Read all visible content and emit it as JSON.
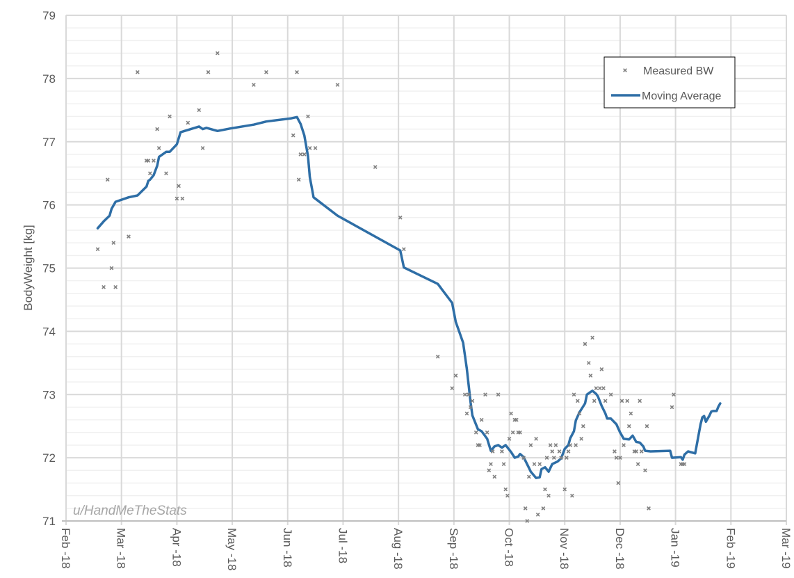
{
  "chart_data": {
    "type": "scatter",
    "title": "",
    "xlabel": "",
    "ylabel": "BodyWeight [kg]",
    "ylim": [
      71,
      79
    ],
    "yticks": [
      "71",
      "72",
      "73",
      "74",
      "75",
      "76",
      "77",
      "78",
      "79"
    ],
    "y_minor_step": 0.2,
    "xlim": [
      "2018-02-01",
      "2019-03-01"
    ],
    "xticks": [
      "Feb -18",
      "Mar -18",
      "Apr -18",
      "May -18",
      "Jun -18",
      "Jul -18",
      "Aug -18",
      "Sep -18",
      "Oct -18",
      "Nov -18",
      "Dec -18",
      "Jan -19",
      "Feb -19",
      "Mar -19"
    ],
    "grid": true,
    "legend_position": "top-right",
    "watermark": "u/HandMeTheStats",
    "colors": {
      "measured": "#808080",
      "moving_average": "#2e6ea6",
      "grid": "#d9d9d9",
      "text": "#595959"
    },
    "series": [
      {
        "name": "Measured BW",
        "type": "scatter",
        "marker": "x",
        "points": [
          [
            "2018-02-17",
            75.3
          ],
          [
            "2018-02-20",
            74.7
          ],
          [
            "2018-02-22",
            76.4
          ],
          [
            "2018-02-24",
            75.0
          ],
          [
            "2018-02-25",
            75.4
          ],
          [
            "2018-02-26",
            74.7
          ],
          [
            "2018-03-05",
            75.5
          ],
          [
            "2018-03-10",
            78.1
          ],
          [
            "2018-03-15",
            76.7
          ],
          [
            "2018-03-16",
            76.7
          ],
          [
            "2018-03-17",
            76.5
          ],
          [
            "2018-03-19",
            76.7
          ],
          [
            "2018-03-21",
            77.2
          ],
          [
            "2018-03-22",
            76.9
          ],
          [
            "2018-03-26",
            76.5
          ],
          [
            "2018-03-28",
            77.4
          ],
          [
            "2018-04-01",
            76.1
          ],
          [
            "2018-04-02",
            76.3
          ],
          [
            "2018-04-04",
            76.1
          ],
          [
            "2018-04-07",
            77.3
          ],
          [
            "2018-04-13",
            77.5
          ],
          [
            "2018-04-15",
            76.9
          ],
          [
            "2018-04-18",
            78.1
          ],
          [
            "2018-04-23",
            78.4
          ],
          [
            "2018-05-13",
            77.9
          ],
          [
            "2018-05-20",
            78.1
          ],
          [
            "2018-06-04",
            77.1
          ],
          [
            "2018-06-06",
            78.1
          ],
          [
            "2018-06-07",
            76.4
          ],
          [
            "2018-06-08",
            76.8
          ],
          [
            "2018-06-10",
            76.8
          ],
          [
            "2018-06-12",
            77.4
          ],
          [
            "2018-06-13",
            76.9
          ],
          [
            "2018-06-16",
            76.9
          ],
          [
            "2018-06-28",
            77.9
          ],
          [
            "2018-07-19",
            76.6
          ],
          [
            "2018-08-02",
            75.8
          ],
          [
            "2018-08-04",
            75.3
          ],
          [
            "2018-08-23",
            73.6
          ],
          [
            "2018-08-31",
            73.1
          ],
          [
            "2018-09-02",
            73.3
          ],
          [
            "2018-09-07",
            73.0
          ],
          [
            "2018-09-08",
            72.7
          ],
          [
            "2018-09-09",
            73.0
          ],
          [
            "2018-09-10",
            72.8
          ],
          [
            "2018-09-11",
            72.9
          ],
          [
            "2018-09-13",
            72.4
          ],
          [
            "2018-09-14",
            72.2
          ],
          [
            "2018-09-15",
            72.2
          ],
          [
            "2018-09-16",
            72.6
          ],
          [
            "2018-09-18",
            73.0
          ],
          [
            "2018-09-19",
            72.4
          ],
          [
            "2018-09-20",
            71.8
          ],
          [
            "2018-09-21",
            71.9
          ],
          [
            "2018-09-22",
            72.1
          ],
          [
            "2018-09-23",
            71.7
          ],
          [
            "2018-09-25",
            73.0
          ],
          [
            "2018-09-27",
            72.1
          ],
          [
            "2018-09-28",
            71.9
          ],
          [
            "2018-09-29",
            71.5
          ],
          [
            "2018-09-30",
            71.4
          ],
          [
            "2018-10-01",
            72.3
          ],
          [
            "2018-10-02",
            72.7
          ],
          [
            "2018-10-03",
            72.4
          ],
          [
            "2018-10-04",
            72.6
          ],
          [
            "2018-10-05",
            72.6
          ],
          [
            "2018-10-06",
            72.4
          ],
          [
            "2018-10-07",
            72.4
          ],
          [
            "2018-10-09",
            72.0
          ],
          [
            "2018-10-10",
            71.2
          ],
          [
            "2018-10-11",
            71.0
          ],
          [
            "2018-10-12",
            71.7
          ],
          [
            "2018-10-13",
            72.2
          ],
          [
            "2018-10-15",
            71.9
          ],
          [
            "2018-10-16",
            72.3
          ],
          [
            "2018-10-17",
            71.1
          ],
          [
            "2018-10-18",
            71.9
          ],
          [
            "2018-10-20",
            71.2
          ],
          [
            "2018-10-21",
            71.5
          ],
          [
            "2018-10-22",
            72.0
          ],
          [
            "2018-10-23",
            71.4
          ],
          [
            "2018-10-24",
            72.2
          ],
          [
            "2018-10-25",
            72.1
          ],
          [
            "2018-10-26",
            72.0
          ],
          [
            "2018-10-27",
            72.2
          ],
          [
            "2018-10-29",
            72.1
          ],
          [
            "2018-10-30",
            72.0
          ],
          [
            "2018-11-01",
            71.5
          ],
          [
            "2018-11-02",
            72.0
          ],
          [
            "2018-11-03",
            72.1
          ],
          [
            "2018-11-04",
            72.2
          ],
          [
            "2018-11-05",
            71.4
          ],
          [
            "2018-11-06",
            73.0
          ],
          [
            "2018-11-07",
            72.2
          ],
          [
            "2018-11-08",
            72.9
          ],
          [
            "2018-11-09",
            72.7
          ],
          [
            "2018-11-10",
            72.3
          ],
          [
            "2018-11-11",
            72.5
          ],
          [
            "2018-11-12",
            73.8
          ],
          [
            "2018-11-14",
            73.5
          ],
          [
            "2018-11-15",
            73.3
          ],
          [
            "2018-11-16",
            73.9
          ],
          [
            "2018-11-17",
            72.9
          ],
          [
            "2018-11-18",
            73.1
          ],
          [
            "2018-11-20",
            73.1
          ],
          [
            "2018-11-21",
            73.4
          ],
          [
            "2018-11-22",
            73.1
          ],
          [
            "2018-11-23",
            72.9
          ],
          [
            "2018-11-26",
            73.0
          ],
          [
            "2018-11-28",
            72.1
          ],
          [
            "2018-11-29",
            72.0
          ],
          [
            "2018-11-30",
            71.6
          ],
          [
            "2018-12-01",
            72.0
          ],
          [
            "2018-12-02",
            72.9
          ],
          [
            "2018-12-03",
            72.2
          ],
          [
            "2018-12-05",
            72.9
          ],
          [
            "2018-12-06",
            72.5
          ],
          [
            "2018-12-07",
            72.7
          ],
          [
            "2018-12-09",
            72.1
          ],
          [
            "2018-12-10",
            72.1
          ],
          [
            "2018-12-11",
            71.9
          ],
          [
            "2018-12-12",
            72.9
          ],
          [
            "2018-12-13",
            72.1
          ],
          [
            "2018-12-15",
            71.8
          ],
          [
            "2018-12-16",
            72.5
          ],
          [
            "2018-12-17",
            71.2
          ],
          [
            "2018-12-30",
            72.8
          ],
          [
            "2018-12-31",
            73.0
          ],
          [
            "2019-01-04",
            71.9
          ],
          [
            "2019-01-05",
            71.9
          ],
          [
            "2019-01-06",
            71.9
          ]
        ]
      },
      {
        "name": "Moving Average",
        "type": "line",
        "points": [
          [
            "2018-02-17",
            75.63
          ],
          [
            "2018-02-20",
            75.74
          ],
          [
            "2018-02-23",
            75.83
          ],
          [
            "2018-02-24",
            75.94
          ],
          [
            "2018-02-26",
            76.05
          ],
          [
            "2018-03-05",
            76.12
          ],
          [
            "2018-03-10",
            76.15
          ],
          [
            "2018-03-15",
            76.29
          ],
          [
            "2018-03-16",
            76.38
          ],
          [
            "2018-03-17",
            76.4
          ],
          [
            "2018-03-19",
            76.47
          ],
          [
            "2018-03-21",
            76.62
          ],
          [
            "2018-03-22",
            76.76
          ],
          [
            "2018-03-26",
            76.84
          ],
          [
            "2018-03-28",
            76.84
          ],
          [
            "2018-04-01",
            76.96
          ],
          [
            "2018-04-03",
            77.15
          ],
          [
            "2018-04-13",
            77.24
          ],
          [
            "2018-04-15",
            77.2
          ],
          [
            "2018-04-17",
            77.22
          ],
          [
            "2018-04-23",
            77.17
          ],
          [
            "2018-04-30",
            77.21
          ],
          [
            "2018-05-13",
            77.27
          ],
          [
            "2018-05-20",
            77.32
          ],
          [
            "2018-06-03",
            77.37
          ],
          [
            "2018-06-06",
            77.39
          ],
          [
            "2018-06-08",
            77.28
          ],
          [
            "2018-06-10",
            77.1
          ],
          [
            "2018-06-12",
            76.77
          ],
          [
            "2018-06-13",
            76.44
          ],
          [
            "2018-06-15",
            76.12
          ],
          [
            "2018-06-28",
            75.83
          ],
          [
            "2018-08-02",
            75.28
          ],
          [
            "2018-08-04",
            75.01
          ],
          [
            "2018-08-23",
            74.75
          ],
          [
            "2018-08-31",
            74.45
          ],
          [
            "2018-09-02",
            74.15
          ],
          [
            "2018-09-06",
            73.82
          ],
          [
            "2018-09-08",
            73.41
          ],
          [
            "2018-09-10",
            72.88
          ],
          [
            "2018-09-11",
            72.67
          ],
          [
            "2018-09-14",
            72.45
          ],
          [
            "2018-09-16",
            72.42
          ],
          [
            "2018-09-19",
            72.3
          ],
          [
            "2018-09-21",
            72.11
          ],
          [
            "2018-09-23",
            72.18
          ],
          [
            "2018-09-25",
            72.2
          ],
          [
            "2018-09-27",
            72.16
          ],
          [
            "2018-09-29",
            72.2
          ],
          [
            "2018-10-02",
            72.09
          ],
          [
            "2018-10-04",
            72.0
          ],
          [
            "2018-10-06",
            72.02
          ],
          [
            "2018-10-07",
            72.06
          ],
          [
            "2018-10-09",
            72.01
          ],
          [
            "2018-10-12",
            71.84
          ],
          [
            "2018-10-13",
            71.78
          ],
          [
            "2018-10-16",
            71.68
          ],
          [
            "2018-10-18",
            71.69
          ],
          [
            "2018-10-19",
            71.82
          ],
          [
            "2018-10-21",
            71.85
          ],
          [
            "2018-10-23",
            71.78
          ],
          [
            "2018-10-25",
            71.9
          ],
          [
            "2018-10-28",
            71.94
          ],
          [
            "2018-10-30",
            71.99
          ],
          [
            "2018-11-01",
            72.14
          ],
          [
            "2018-11-03",
            72.2
          ],
          [
            "2018-11-04",
            72.31
          ],
          [
            "2018-11-06",
            72.42
          ],
          [
            "2018-11-07",
            72.59
          ],
          [
            "2018-11-09",
            72.72
          ],
          [
            "2018-11-12",
            72.86
          ],
          [
            "2018-11-13",
            73.0
          ],
          [
            "2018-11-15",
            73.04
          ],
          [
            "2018-11-16",
            73.06
          ],
          [
            "2018-11-18",
            73.01
          ],
          [
            "2018-11-19",
            72.97
          ],
          [
            "2018-11-21",
            72.82
          ],
          [
            "2018-11-23",
            72.7
          ],
          [
            "2018-11-24",
            72.62
          ],
          [
            "2018-11-26",
            72.62
          ],
          [
            "2018-11-29",
            72.53
          ],
          [
            "2018-12-01",
            72.4
          ],
          [
            "2018-12-03",
            72.3
          ],
          [
            "2018-12-06",
            72.29
          ],
          [
            "2018-12-08",
            72.35
          ],
          [
            "2018-12-10",
            72.25
          ],
          [
            "2018-12-12",
            72.24
          ],
          [
            "2018-12-14",
            72.18
          ],
          [
            "2018-12-15",
            72.11
          ],
          [
            "2018-12-18",
            72.1
          ],
          [
            "2018-12-29",
            72.11
          ],
          [
            "2018-12-30",
            72.0
          ],
          [
            "2019-01-04",
            72.01
          ],
          [
            "2019-01-05",
            71.97
          ],
          [
            "2019-01-06",
            72.05
          ],
          [
            "2019-01-08",
            72.1
          ],
          [
            "2019-01-12",
            72.07
          ],
          [
            "2019-01-15",
            72.53
          ],
          [
            "2019-01-16",
            72.64
          ],
          [
            "2019-01-17",
            72.66
          ],
          [
            "2019-01-18",
            72.57
          ],
          [
            "2019-01-20",
            72.67
          ],
          [
            "2019-01-21",
            72.73
          ],
          [
            "2019-01-22",
            72.74
          ],
          [
            "2019-01-24",
            72.74
          ],
          [
            "2019-01-25",
            72.81
          ],
          [
            "2019-01-26",
            72.86
          ]
        ]
      }
    ]
  }
}
